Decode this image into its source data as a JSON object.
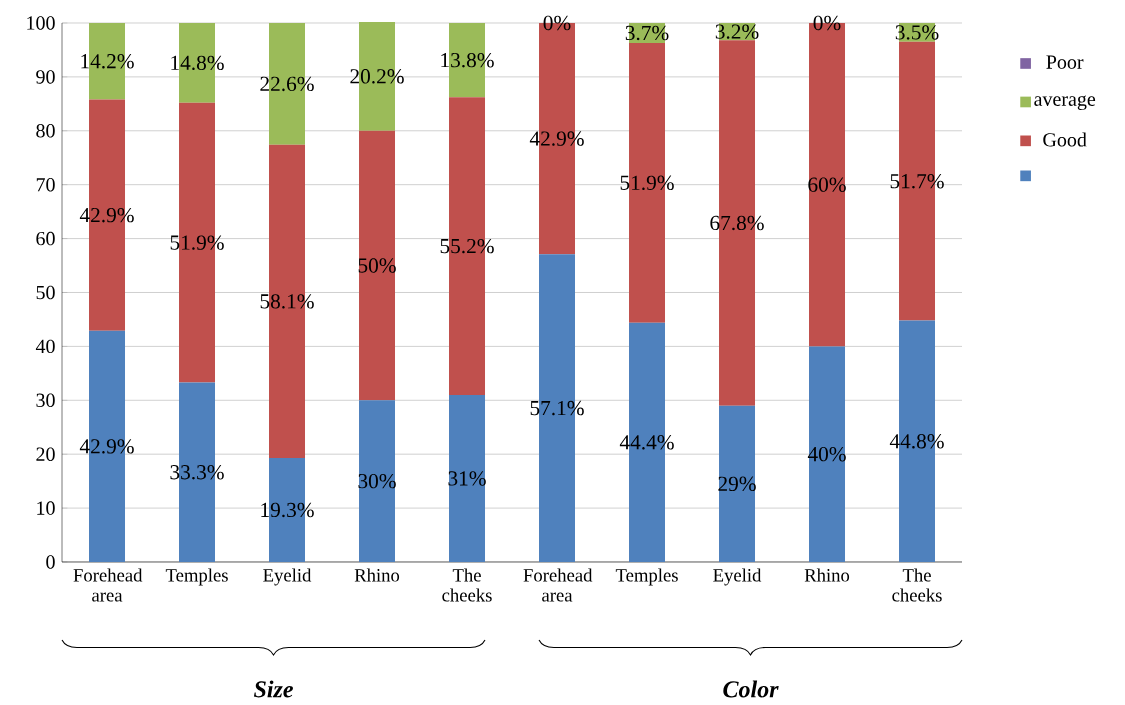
{
  "chart_data": {
    "type": "bar",
    "stacked": true,
    "categories": [
      "Forehead area",
      "Temples",
      "Eyelid",
      "Rhino",
      "The cheeks",
      "Forehead area",
      "Temples",
      "Eyelid",
      "Rhino",
      "The cheeks"
    ],
    "series": [
      {
        "color": "#4f81bd",
        "values": [
          42.9,
          33.3,
          19.3,
          30,
          31,
          57.1,
          44.4,
          29,
          40,
          44.8
        ],
        "value_labels": [
          "42.9%",
          "33.3%",
          "19.3%",
          "30%",
          "31%",
          "57.1%",
          "44.4%",
          "29%",
          "40%",
          "44.8%"
        ]
      },
      {
        "name": "Good",
        "color": "#c0504d",
        "values": [
          42.9,
          51.9,
          58.1,
          50,
          55.2,
          42.9,
          51.9,
          67.8,
          60,
          51.7
        ],
        "value_labels": [
          "42.9%",
          "51.9%",
          "58.1%",
          "50%",
          "55.2%",
          "42.9%",
          "51.9%",
          "67.8%",
          "60%",
          "51.7%"
        ]
      },
      {
        "name": "average",
        "color": "#9bbb59",
        "values": [
          14.2,
          14.8,
          22.6,
          20.2,
          13.8,
          0,
          3.7,
          3.2,
          0,
          3.5
        ],
        "value_labels": [
          "14.2%",
          "14.8%",
          "22.6%",
          "20.2%",
          "13.8%",
          "0%",
          "3.7%",
          "3.2%",
          "0%",
          "3.5%"
        ]
      },
      {
        "name": "Poor",
        "color": "#8064a2",
        "values": [
          null,
          null,
          null,
          null,
          null,
          null,
          null,
          null,
          null,
          null
        ]
      }
    ],
    "ylim": [
      0,
      100
    ],
    "yticks": [
      0,
      10,
      20,
      30,
      40,
      50,
      60,
      70,
      80,
      90,
      100
    ],
    "grid": "y",
    "legend": "right",
    "annotations": [
      "Size",
      "Color"
    ]
  }
}
